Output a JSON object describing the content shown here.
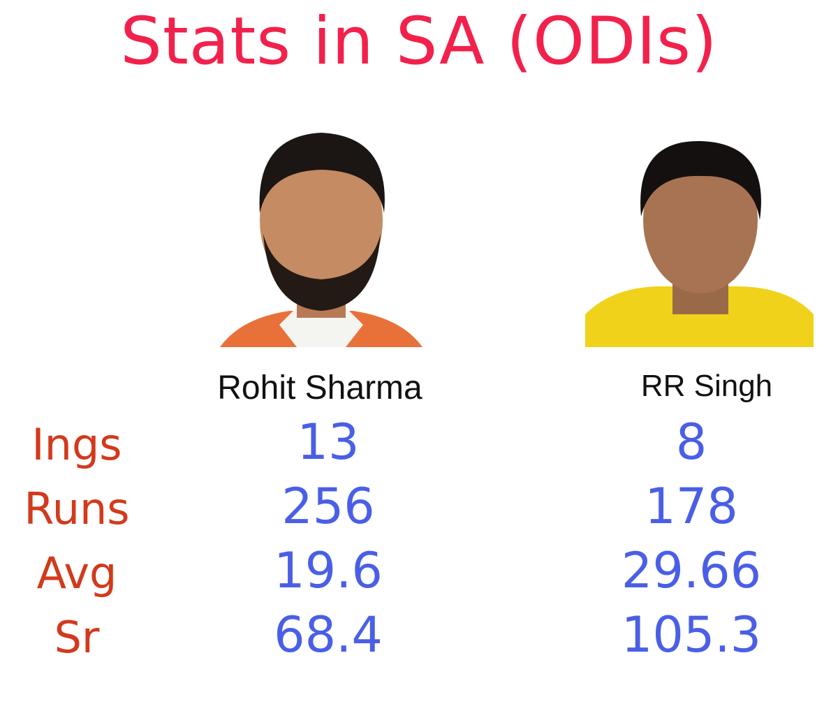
{
  "title": "Stats in SA (ODIs)",
  "players": [
    {
      "name": "Rohit Sharma"
    },
    {
      "name": "RR Singh"
    }
  ],
  "table": {
    "rows": [
      {
        "label": "Ings",
        "values": [
          "13",
          "8"
        ]
      },
      {
        "label": "Runs",
        "values": [
          "256",
          "178"
        ]
      },
      {
        "label": "Avg",
        "values": [
          "19.6",
          "29.66"
        ]
      },
      {
        "label": "Sr",
        "values": [
          "68.4",
          "105.3"
        ]
      }
    ]
  }
}
